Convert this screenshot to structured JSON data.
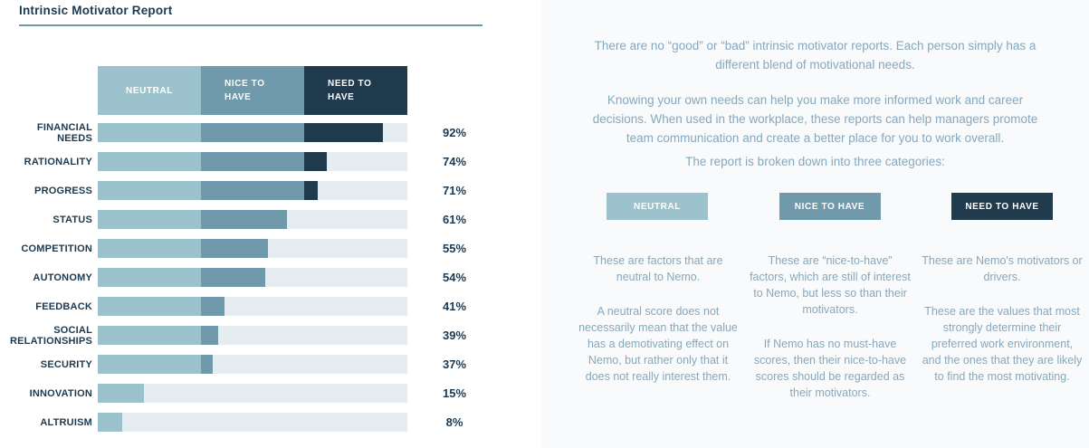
{
  "title": "Intrinsic Motivator Report",
  "colors": {
    "neutral": "#9cc3cd",
    "nice_to_have": "#7199ac",
    "need_to_have": "#203a4e",
    "track": "#e5edf1",
    "navy_text": "#1b3a52",
    "muted_text": "#86a8be",
    "rule": "#7195ab",
    "right_bg": "#f9fafb"
  },
  "chart_data": {
    "type": "bar",
    "orientation": "horizontal",
    "title": "Intrinsic Motivator Report",
    "xlim": [
      0,
      100
    ],
    "value_suffix": "%",
    "zones": [
      {
        "label": "NEUTRAL",
        "range": [
          0,
          33.3
        ]
      },
      {
        "label": "NICE TO HAVE",
        "range": [
          33.3,
          66.7
        ]
      },
      {
        "label": "NEED TO HAVE",
        "range": [
          66.7,
          100
        ]
      }
    ],
    "categories": [
      "FINANCIAL NEEDS",
      "RATIONALITY",
      "PROGRESS",
      "STATUS",
      "COMPETITION",
      "AUTONOMY",
      "FEEDBACK",
      "SOCIAL RELATIONSHIPS",
      "SECURITY",
      "INNOVATION",
      "ALTRUISM"
    ],
    "values": [
      92,
      74,
      71,
      61,
      55,
      54,
      41,
      39,
      37,
      15,
      8
    ]
  },
  "right_panel": {
    "intro_paragraphs": {
      "p1": "There are no “good” or “bad” intrinsic motivator reports. Each person simply has a different blend of motivational needs.",
      "p2": "Knowing your own needs can help you make more informed work and career decisions. When used in the workplace, these reports can help managers promote team communication and create a better place for you to work overall.",
      "p3": "The report is broken down into three categories:"
    },
    "categories": [
      {
        "badge": "NEUTRAL",
        "paragraphs": [
          "These are factors that are neutral to Nemo.",
          "A neutral score does not necessarily mean that the value has a demotivating effect on Nemo, but rather only that it does not really interest them."
        ]
      },
      {
        "badge": "NICE TO HAVE",
        "paragraphs": [
          "These are “nice-to-have” factors, which are still of interest to Nemo, but less so than their motivators.",
          "If Nemo has no must-have scores, then their nice-to-have scores should be regarded as their motivators."
        ]
      },
      {
        "badge": "NEED TO HAVE",
        "paragraphs": [
          "These are Nemo's motivators or drivers.",
          "These are the values that most strongly determine their preferred work environment, and the ones that they are likely to find the most motivating."
        ]
      }
    ]
  }
}
